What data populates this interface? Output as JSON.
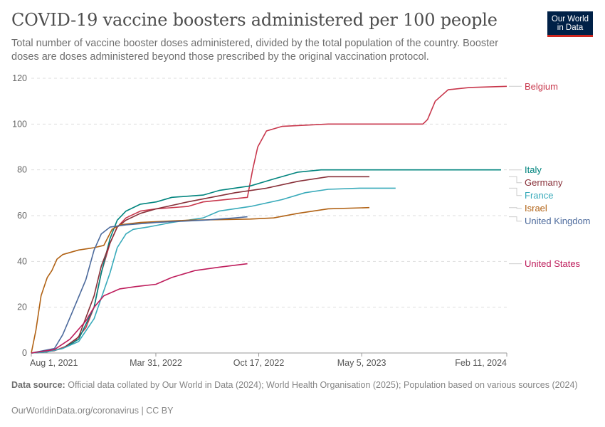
{
  "header": {
    "title": "COVID-19 vaccine boosters administered per 100 people",
    "subtitle": "Total number of vaccine booster doses administered, divided by the total population of the country. Booster doses are doses administered beyond those prescribed by the original vaccination protocol."
  },
  "logo": {
    "line1": "Our World",
    "line2": "in Data",
    "bg_color": "#002147",
    "accent_color": "#ce261e"
  },
  "footer": {
    "source_label": "Data source:",
    "source_text": "Official data collated by Our World in Data (2024); World Health Organisation (2025); Population based on various sources (2024)",
    "credit": "OurWorldinData.org/coronavirus | CC BY"
  },
  "chart_data": {
    "type": "line",
    "title": "COVID-19 vaccine boosters administered per 100 people",
    "xlabel": "",
    "ylabel": "",
    "x_type": "date",
    "xlim": [
      "2021-08-01",
      "2024-02-11"
    ],
    "ylim": [
      0,
      120
    ],
    "y_ticks": [
      0,
      20,
      40,
      60,
      80,
      100,
      120
    ],
    "x_ticks": [
      {
        "date": "2021-08-01",
        "label": "Aug 1, 2021"
      },
      {
        "date": "2022-03-31",
        "label": "Mar 31, 2022"
      },
      {
        "date": "2022-10-17",
        "label": "Oct 17, 2022"
      },
      {
        "date": "2023-05-05",
        "label": "May 5, 2023"
      },
      {
        "date": "2024-02-11",
        "label": "Feb 11, 2024"
      }
    ],
    "grid": "horizontal-dashed",
    "legend": "right (inline labels)",
    "series": [
      {
        "name": "Belgium",
        "color": "#c8374c",
        "points": [
          [
            "2021-08-01",
            0
          ],
          [
            "2021-09-15",
            1
          ],
          [
            "2021-10-20",
            4
          ],
          [
            "2021-11-15",
            11
          ],
          [
            "2021-12-01",
            20
          ],
          [
            "2021-12-15",
            35
          ],
          [
            "2022-01-01",
            48
          ],
          [
            "2022-01-15",
            55
          ],
          [
            "2022-02-01",
            59
          ],
          [
            "2022-03-01",
            62
          ],
          [
            "2022-04-01",
            63
          ],
          [
            "2022-06-01",
            64
          ],
          [
            "2022-07-01",
            66
          ],
          [
            "2022-09-25",
            68
          ],
          [
            "2022-10-05",
            80
          ],
          [
            "2022-10-15",
            90
          ],
          [
            "2022-11-01",
            97
          ],
          [
            "2022-12-01",
            99
          ],
          [
            "2023-03-01",
            100
          ],
          [
            "2023-07-01",
            100
          ],
          [
            "2023-09-01",
            100
          ],
          [
            "2023-09-10",
            102
          ],
          [
            "2023-09-25",
            110
          ],
          [
            "2023-10-20",
            115
          ],
          [
            "2023-12-01",
            116
          ],
          [
            "2024-02-11",
            116.5
          ]
        ]
      },
      {
        "name": "Italy",
        "color": "#00847e",
        "points": [
          [
            "2021-08-01",
            0
          ],
          [
            "2021-09-01",
            0.5
          ],
          [
            "2021-10-01",
            2
          ],
          [
            "2021-11-01",
            6
          ],
          [
            "2021-12-01",
            20
          ],
          [
            "2021-12-15",
            35
          ],
          [
            "2022-01-01",
            50
          ],
          [
            "2022-01-15",
            58
          ],
          [
            "2022-02-01",
            62
          ],
          [
            "2022-03-01",
            65
          ],
          [
            "2022-04-01",
            66
          ],
          [
            "2022-05-01",
            68
          ],
          [
            "2022-07-01",
            69
          ],
          [
            "2022-08-01",
            71
          ],
          [
            "2022-10-01",
            73
          ],
          [
            "2022-11-15",
            76
          ],
          [
            "2023-01-01",
            79
          ],
          [
            "2023-02-15",
            80
          ],
          [
            "2024-01-31",
            80
          ]
        ]
      },
      {
        "name": "Germany",
        "color": "#883039",
        "points": [
          [
            "2021-08-01",
            0
          ],
          [
            "2021-09-01",
            0.5
          ],
          [
            "2021-10-01",
            2
          ],
          [
            "2021-11-01",
            7
          ],
          [
            "2021-12-01",
            25
          ],
          [
            "2021-12-15",
            38
          ],
          [
            "2022-01-01",
            48
          ],
          [
            "2022-01-15",
            55
          ],
          [
            "2022-02-01",
            58
          ],
          [
            "2022-03-01",
            61
          ],
          [
            "2022-04-01",
            63
          ],
          [
            "2022-06-01",
            66
          ],
          [
            "2022-09-01",
            70
          ],
          [
            "2022-11-01",
            72
          ],
          [
            "2023-01-01",
            75
          ],
          [
            "2023-03-01",
            77
          ],
          [
            "2023-05-20",
            77
          ]
        ]
      },
      {
        "name": "France",
        "color": "#38aaba",
        "points": [
          [
            "2021-08-01",
            0
          ],
          [
            "2021-09-01",
            0.5
          ],
          [
            "2021-10-01",
            2
          ],
          [
            "2021-11-01",
            5
          ],
          [
            "2021-12-01",
            15
          ],
          [
            "2022-01-01",
            35
          ],
          [
            "2022-01-15",
            46
          ],
          [
            "2022-02-01",
            52
          ],
          [
            "2022-02-15",
            54
          ],
          [
            "2022-03-15",
            55
          ],
          [
            "2022-05-01",
            57
          ],
          [
            "2022-07-01",
            59
          ],
          [
            "2022-08-01",
            62
          ],
          [
            "2022-10-01",
            64
          ],
          [
            "2022-12-01",
            67
          ],
          [
            "2023-01-15",
            70
          ],
          [
            "2023-03-01",
            71.5
          ],
          [
            "2023-05-01",
            72
          ],
          [
            "2023-07-10",
            72
          ]
        ]
      },
      {
        "name": "Israel",
        "color": "#b16214",
        "points": [
          [
            "2021-08-01",
            0
          ],
          [
            "2021-08-10",
            10
          ],
          [
            "2021-08-20",
            25
          ],
          [
            "2021-09-01",
            33
          ],
          [
            "2021-09-10",
            36
          ],
          [
            "2021-09-20",
            41
          ],
          [
            "2021-10-01",
            43
          ],
          [
            "2021-11-01",
            45
          ],
          [
            "2021-12-01",
            46
          ],
          [
            "2021-12-20",
            47
          ],
          [
            "2022-01-05",
            54
          ],
          [
            "2022-01-20",
            56
          ],
          [
            "2022-03-01",
            57
          ],
          [
            "2022-06-01",
            58
          ],
          [
            "2022-10-01",
            58.5
          ],
          [
            "2022-11-15",
            59
          ],
          [
            "2023-01-01",
            61
          ],
          [
            "2023-03-01",
            63
          ],
          [
            "2023-05-20",
            63.5
          ]
        ]
      },
      {
        "name": "United Kingdom",
        "color": "#4c6a9c",
        "points": [
          [
            "2021-08-01",
            0
          ],
          [
            "2021-09-15",
            2
          ],
          [
            "2021-10-01",
            8
          ],
          [
            "2021-10-20",
            18
          ],
          [
            "2021-11-15",
            32
          ],
          [
            "2021-12-01",
            45
          ],
          [
            "2021-12-15",
            52
          ],
          [
            "2022-01-01",
            55
          ],
          [
            "2022-02-01",
            56
          ],
          [
            "2022-04-01",
            57
          ],
          [
            "2022-07-01",
            58
          ],
          [
            "2022-09-01",
            59
          ],
          [
            "2022-09-25",
            59.5
          ]
        ]
      },
      {
        "name": "United States",
        "color": "#be1d5c",
        "points": [
          [
            "2021-08-01",
            0
          ],
          [
            "2021-09-15",
            1.5
          ],
          [
            "2021-10-15",
            6
          ],
          [
            "2021-11-15",
            14
          ],
          [
            "2021-12-01",
            20
          ],
          [
            "2021-12-20",
            25
          ],
          [
            "2022-01-20",
            28
          ],
          [
            "2022-02-20",
            29
          ],
          [
            "2022-03-31",
            30
          ],
          [
            "2022-05-01",
            33
          ],
          [
            "2022-06-15",
            36
          ],
          [
            "2022-08-01",
            37.5
          ],
          [
            "2022-09-25",
            39
          ]
        ]
      }
    ]
  }
}
